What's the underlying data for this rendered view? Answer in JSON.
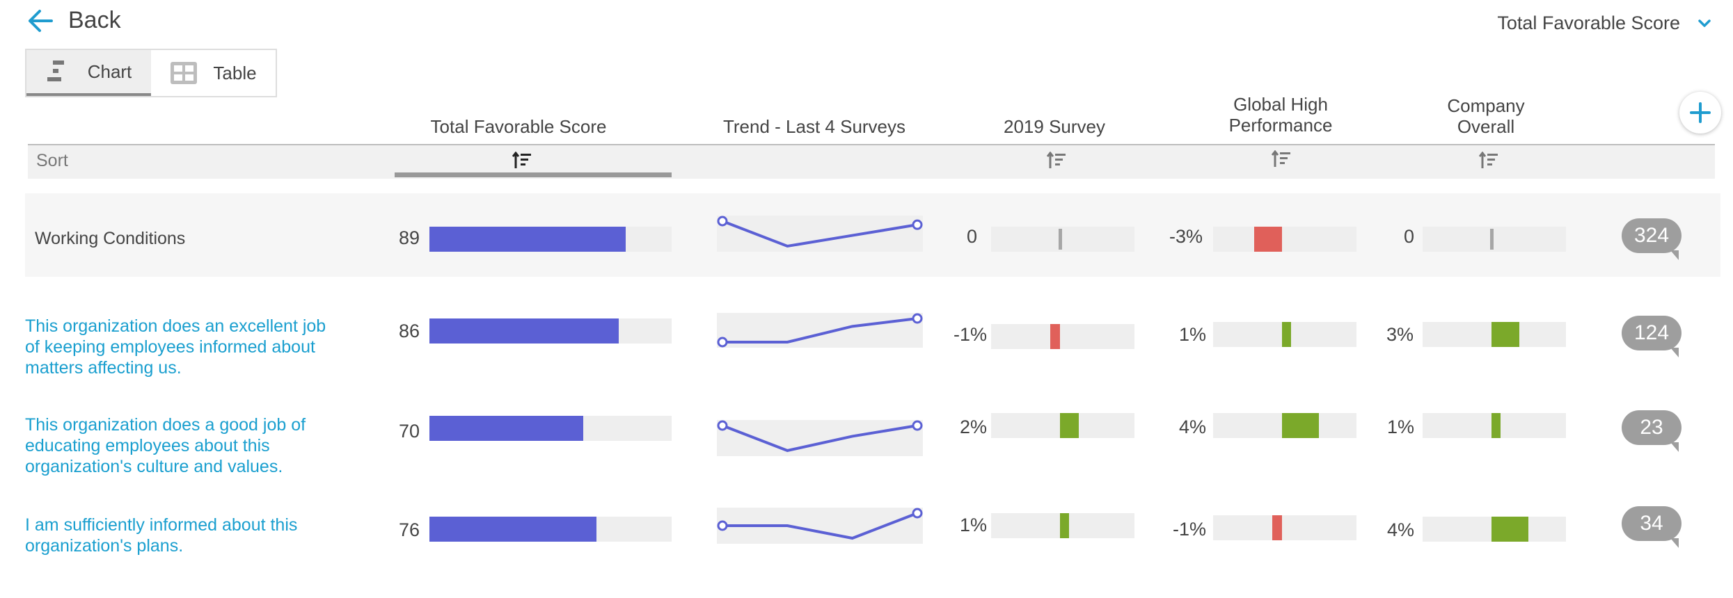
{
  "header": {
    "back_label": "Back",
    "metric_selector": "Total Favorable Score"
  },
  "view_toggle": {
    "chart_label": "Chart",
    "table_label": "Table",
    "active": "chart"
  },
  "columns": {
    "total_favorable": "Total Favorable Score",
    "trend": "Trend - Last 4 Surveys",
    "survey_2019": "2019 Survey",
    "global_high_line1": "Global High",
    "global_high_line2": "Performance",
    "company_line1": "Company",
    "company_line2": "Overall"
  },
  "sort_label": "Sort",
  "colors": {
    "score_bar": "#5b60d4",
    "positive": "#7ba92a",
    "negative": "#e0605a",
    "neutral": "#a6a6a6",
    "link": "#1a9fcf",
    "accent": "#1f9ccf"
  },
  "rows": [
    {
      "label": "Working Conditions",
      "score": "89",
      "score_value": 89,
      "trend": [
        90,
        83,
        86,
        89
      ],
      "survey_2019": "0",
      "survey_2019_value": 0,
      "global_high": "-3%",
      "global_high_value": -3,
      "company_overall": "0",
      "company_overall_value": 0,
      "comments": "324"
    },
    {
      "label": "This organization does an excellent job of keeping employees informed about matters affecting us.",
      "score": "86",
      "score_value": 86,
      "trend": [
        79,
        79,
        83,
        85
      ],
      "survey_2019": "-1%",
      "survey_2019_value": -1,
      "global_high": "1%",
      "global_high_value": 1,
      "company_overall": "3%",
      "company_overall_value": 3,
      "comments": "124"
    },
    {
      "label": "This organization does a good job of educating employees about this organization's culture and values.",
      "score": "70",
      "score_value": 70,
      "trend": [
        68,
        61,
        65,
        68
      ],
      "survey_2019": "2%",
      "survey_2019_value": 2,
      "global_high": "4%",
      "global_high_value": 4,
      "company_overall": "1%",
      "company_overall_value": 1,
      "comments": "23"
    },
    {
      "label": "I am sufficiently informed about this organization's plans.",
      "score": "76",
      "score_value": 76,
      "trend": [
        74,
        74,
        71,
        77
      ],
      "survey_2019": "1%",
      "survey_2019_value": 1,
      "global_high": "-1%",
      "global_high_value": -1,
      "company_overall": "4%",
      "company_overall_value": 4,
      "comments": "34"
    }
  ]
}
